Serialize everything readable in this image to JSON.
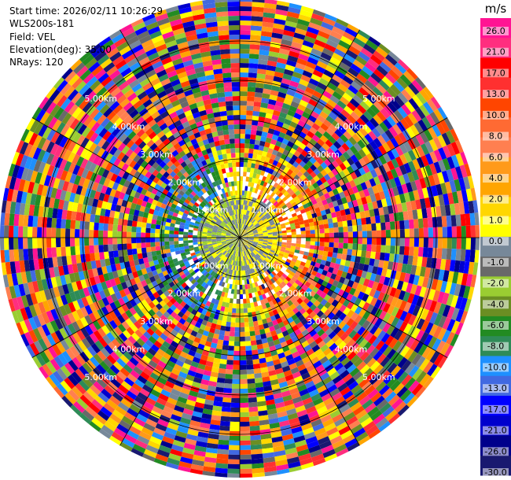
{
  "chart_data": {
    "type": "heatmap",
    "projection": "polar-ppi",
    "info": {
      "start_time": "Start time: 2026/02/11 10:26:29",
      "station": "WLS200s-181",
      "field": "Field: VEL",
      "elevation": "Elevation(deg): 35.00",
      "nrays": "NRays: 120"
    },
    "range_rings_km": [
      "1.00km",
      "2.00km",
      "3.00km",
      "4.00km",
      "5.00km"
    ],
    "max_range_km": 6.1,
    "colorbar": {
      "unit": "m/s",
      "ticks": [
        "26.0",
        "21.0",
        "17.0",
        "13.0",
        "10.0",
        "8.0",
        "6.0",
        "4.0",
        "2.0",
        "1.0",
        "0.0",
        "-1.0",
        "-2.0",
        "-4.0",
        "-6.0",
        "-8.0",
        "-10.0",
        "-13.0",
        "-17.0",
        "-21.0",
        "-26.0",
        "-30.0"
      ],
      "colors": [
        "#ff1493",
        "#ff2e7f",
        "#ff0000",
        "#ff3030",
        "#ff4500",
        "#ff6a33",
        "#ff7f50",
        "#ff9a1a",
        "#ffa500",
        "#ffd700",
        "#ffff00",
        "#778899",
        "#696969",
        "#9acd32",
        "#6b8e23",
        "#228b22",
        "#2e8b57",
        "#1e90ff",
        "#4169e1",
        "#0000ff",
        "#0000cd",
        "#00008b",
        "#191970"
      ]
    },
    "pattern": {
      "inner_radius_km": 1.0,
      "inner_description": "Near-zero / yellow values within 1 km, positive (orange-red) to the east, negative (green-blue) to the west",
      "outer": "Noisy multicolour velocity bins beyond ~2 km"
    }
  }
}
